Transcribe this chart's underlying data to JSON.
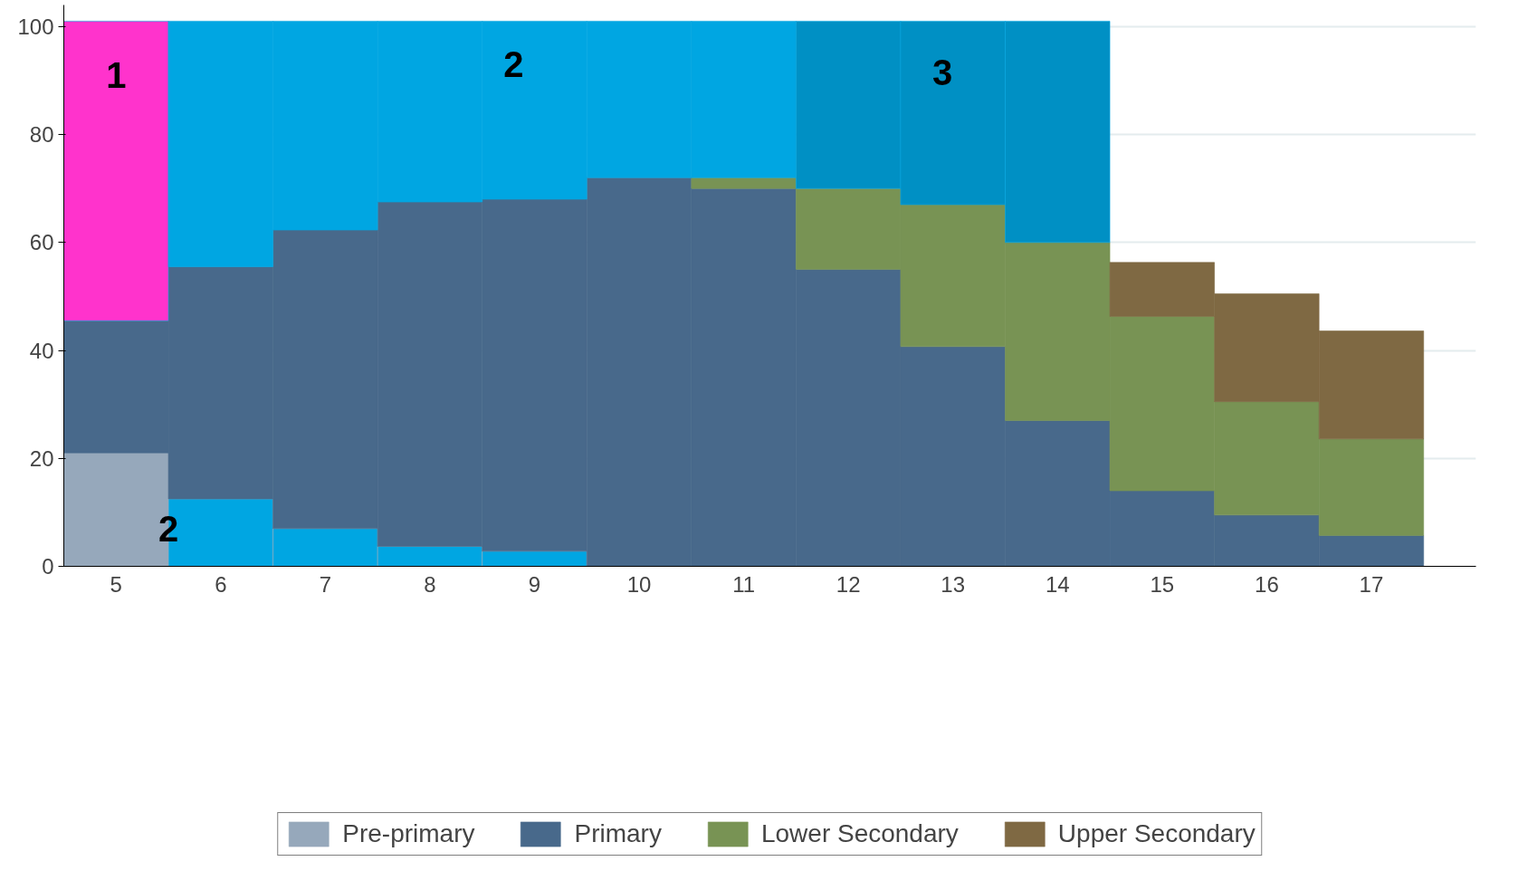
{
  "chart_data": {
    "type": "bar",
    "stacked": true,
    "categories": [
      "5",
      "6",
      "7",
      "8",
      "9",
      "10",
      "11",
      "12",
      "13",
      "14",
      "15",
      "16",
      "17"
    ],
    "series": [
      {
        "name": "Pre-primary",
        "color": "#96a8bb",
        "colors": [
          "#96a8bb",
          "#00a6e2",
          "#00a6e2",
          "#00a6e2",
          "#00a6e2",
          "#96a8bb",
          "#96a8bb",
          "#96a8bb",
          "#96a8bb",
          "#96a8bb",
          "#96a8bb",
          "#96a8bb",
          "#96a8bb"
        ],
        "values": [
          21,
          12.5,
          7,
          3.7,
          2.8,
          null,
          null,
          null,
          null,
          null,
          null,
          null,
          null
        ]
      },
      {
        "name": "Primary",
        "color": "#48698b",
        "values": [
          24.5,
          43,
          55.3,
          63.8,
          65.2,
          72,
          70,
          55,
          40.7,
          27,
          14,
          9.5,
          5.7
        ]
      },
      {
        "name": "Lower Secondary",
        "color": "#789354",
        "values": [
          null,
          null,
          null,
          null,
          null,
          null,
          2,
          15,
          26.3,
          33,
          32.3,
          21,
          17.9
        ]
      },
      {
        "name": "Upper Secondary",
        "color": "#7f6943",
        "values": [
          null,
          null,
          null,
          null,
          null,
          null,
          null,
          null,
          null,
          null,
          10,
          20,
          20
        ]
      },
      {
        "color": "#00a6e2",
        "colors": [
          "#ff33cc",
          "#00a6e2",
          "#00a6e2",
          "#00a6e2",
          "#00a6e2",
          "#00a6e2",
          "#00a6e2",
          "#0090c4",
          "#0090c4",
          "#0090c4",
          "#00a6e2",
          "#00a6e2",
          "#00a6e2"
        ],
        "values": [
          55.5,
          45.5,
          38.7,
          33.5,
          33,
          29,
          29,
          31,
          34,
          41,
          null,
          null,
          null
        ]
      }
    ],
    "annotations": [
      "1",
      "2",
      "3",
      "2"
    ],
    "ylim": [
      0,
      104
    ],
    "yticks": [
      0,
      20,
      40,
      60,
      80,
      100
    ],
    "grid": "y",
    "legend": "bottom"
  }
}
